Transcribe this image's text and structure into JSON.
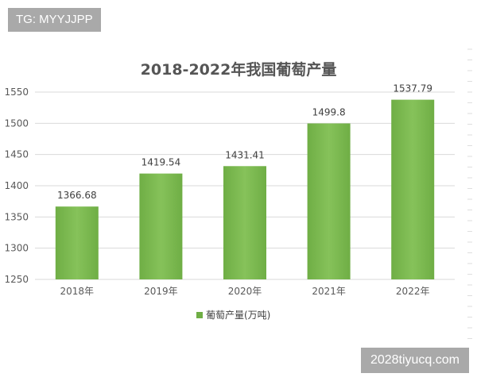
{
  "watermarks": {
    "top": "TG: MYYJJPP",
    "bottom": "2028tiyucq.com"
  },
  "colors": {
    "bar": "#6fae45",
    "bar_light": "#86c25a",
    "grid": "#d9d9d9",
    "watermark_bg": "#a9a9a9"
  },
  "chart_data": {
    "type": "bar",
    "title": "2018-2022年我国葡萄产量",
    "categories": [
      "2018年",
      "2019年",
      "2020年",
      "2021年",
      "2022年"
    ],
    "series": [
      {
        "name": "葡萄产量(万吨)",
        "values": [
          1366.68,
          1419.54,
          1431.41,
          1499.8,
          1537.79
        ]
      }
    ],
    "data_labels": [
      "1366.68",
      "1419.54",
      "1431.41",
      "1499.8",
      "1537.79"
    ],
    "yticks": [
      1250,
      1300,
      1350,
      1400,
      1450,
      1500,
      1550
    ],
    "ylim": [
      1250,
      1550
    ],
    "xlabel": "",
    "ylabel": "",
    "grid": true,
    "legend_position": "bottom"
  }
}
